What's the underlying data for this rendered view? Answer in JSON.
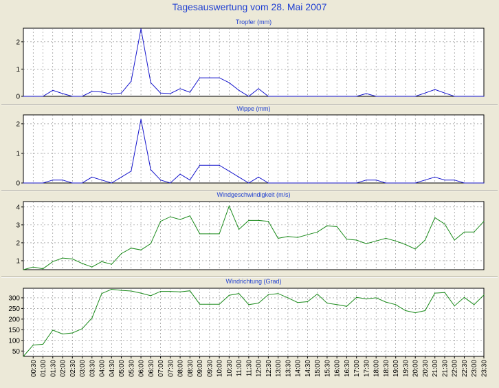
{
  "page_title": "Tagesauswertung vom 28. Mai 2007",
  "colors": {
    "background": "#ece9d8",
    "title": "#1f3fd1",
    "plot": "#ffffff",
    "grid": "#808080",
    "rain": "#1515cc",
    "wind": "#1a8a1a"
  },
  "time_axis": {
    "tick_labels": [
      "00:30",
      "01:00",
      "01:30",
      "02:00",
      "02:30",
      "03:00",
      "03:30",
      "04:00",
      "04:30",
      "05:00",
      "05:30",
      "06:00",
      "06:30",
      "07:00",
      "07:30",
      "08:00",
      "08:30",
      "09:00",
      "09:30",
      "10:00",
      "10:30",
      "11:00",
      "11:30",
      "12:00",
      "12:30",
      "13:00",
      "13:30",
      "14:00",
      "14:30",
      "15:00",
      "15:30",
      "16:00",
      "16:30",
      "17:00",
      "17:30",
      "18:00",
      "18:30",
      "19:00",
      "19:30",
      "20:00",
      "20:30",
      "21:00",
      "21:30",
      "22:00",
      "22:30",
      "23:00",
      "23:30"
    ]
  },
  "chart_data": [
    {
      "type": "line",
      "title": "Tropfer (mm)",
      "ylim": [
        0,
        2.5
      ],
      "yticks": [
        "0",
        "1",
        "2"
      ],
      "grid": true,
      "color": "#1515cc",
      "x": [
        "00:00",
        "00:30",
        "01:00",
        "01:30",
        "02:00",
        "02:30",
        "03:00",
        "03:30",
        "04:00",
        "04:30",
        "05:00",
        "05:30",
        "06:00",
        "06:30",
        "07:00",
        "07:30",
        "08:00",
        "08:30",
        "09:00",
        "09:30",
        "10:00",
        "10:30",
        "11:00",
        "11:30",
        "12:00",
        "12:30",
        "13:00",
        "13:30",
        "14:00",
        "14:30",
        "15:00",
        "15:30",
        "16:00",
        "16:30",
        "17:00",
        "17:30",
        "18:00",
        "18:30",
        "19:00",
        "19:30",
        "20:00",
        "20:30",
        "21:00",
        "21:30",
        "22:00",
        "22:30",
        "23:00",
        "23:30"
      ],
      "values": [
        0,
        0,
        0,
        0.22,
        0.1,
        0,
        0,
        0.18,
        0.16,
        0.08,
        0.12,
        0.55,
        2.48,
        0.5,
        0.12,
        0.1,
        0.28,
        0.15,
        0.68,
        0.68,
        0.68,
        0.5,
        0.22,
        0,
        0.28,
        0,
        0,
        0,
        0,
        0,
        0,
        0,
        0,
        0,
        0,
        0.1,
        0,
        0,
        0,
        0,
        0,
        0.12,
        0.25,
        0.12,
        0,
        0,
        0,
        0
      ]
    },
    {
      "type": "line",
      "title": "Wippe (mm)",
      "ylim": [
        0,
        2.3
      ],
      "yticks": [
        "0",
        "1",
        "2"
      ],
      "grid": true,
      "color": "#1515cc",
      "x": [
        "00:00",
        "00:30",
        "01:00",
        "01:30",
        "02:00",
        "02:30",
        "03:00",
        "03:30",
        "04:00",
        "04:30",
        "05:00",
        "05:30",
        "06:00",
        "06:30",
        "07:00",
        "07:30",
        "08:00",
        "08:30",
        "09:00",
        "09:30",
        "10:00",
        "10:30",
        "11:00",
        "11:30",
        "12:00",
        "12:30",
        "13:00",
        "13:30",
        "14:00",
        "14:30",
        "15:00",
        "15:30",
        "16:00",
        "16:30",
        "17:00",
        "17:30",
        "18:00",
        "18:30",
        "19:00",
        "19:30",
        "20:00",
        "20:30",
        "21:00",
        "21:30",
        "22:00",
        "22:30",
        "23:00",
        "23:30"
      ],
      "values": [
        0,
        0,
        0,
        0.1,
        0.1,
        0,
        0,
        0.2,
        0.1,
        0,
        0.2,
        0.4,
        2.15,
        0.45,
        0.1,
        0,
        0.3,
        0.1,
        0.6,
        0.6,
        0.6,
        0.4,
        0.2,
        0,
        0.2,
        0,
        0,
        0,
        0,
        0,
        0,
        0,
        0,
        0,
        0,
        0.1,
        0.1,
        0,
        0,
        0,
        0,
        0.1,
        0.2,
        0.1,
        0.1,
        0,
        0,
        0
      ]
    },
    {
      "type": "line",
      "title": "Windgeschwindigkeit (m/s)",
      "ylim": [
        0.5,
        4.3
      ],
      "yticks": [
        "1",
        "2",
        "3",
        "4"
      ],
      "grid": true,
      "color": "#1a8a1a",
      "x": [
        "00:00",
        "00:30",
        "01:00",
        "01:30",
        "02:00",
        "02:30",
        "03:00",
        "03:30",
        "04:00",
        "04:30",
        "05:00",
        "05:30",
        "06:00",
        "06:30",
        "07:00",
        "07:30",
        "08:00",
        "08:30",
        "09:00",
        "09:30",
        "10:00",
        "10:30",
        "11:00",
        "11:30",
        "12:00",
        "12:30",
        "13:00",
        "13:30",
        "14:00",
        "14:30",
        "15:00",
        "15:30",
        "16:00",
        "16:30",
        "17:00",
        "17:30",
        "18:00",
        "18:30",
        "19:00",
        "19:30",
        "20:00",
        "20:30",
        "21:00",
        "21:30",
        "22:00",
        "22:30",
        "23:00",
        "23:30"
      ],
      "values": [
        0.5,
        0.65,
        0.55,
        0.95,
        1.15,
        1.1,
        0.85,
        0.65,
        0.95,
        0.8,
        1.4,
        1.7,
        1.6,
        1.95,
        3.2,
        3.45,
        3.3,
        3.5,
        2.5,
        2.5,
        2.5,
        4.05,
        2.75,
        3.25,
        3.25,
        3.2,
        2.25,
        2.35,
        2.3,
        2.45,
        2.6,
        2.95,
        2.9,
        2.2,
        2.15,
        1.95,
        2.1,
        2.25,
        2.1,
        1.9,
        1.65,
        2.15,
        3.4,
        3.05,
        2.15,
        2.6,
        2.6,
        3.2
      ]
    },
    {
      "type": "line",
      "title": "Windrichtung (Grad)",
      "ylim": [
        25,
        345
      ],
      "yticks": [
        "50",
        "100",
        "150",
        "200",
        "250",
        "300"
      ],
      "grid": true,
      "color": "#1a8a1a",
      "x": [
        "00:00",
        "00:30",
        "01:00",
        "01:30",
        "02:00",
        "02:30",
        "03:00",
        "03:30",
        "04:00",
        "04:30",
        "05:00",
        "05:30",
        "06:00",
        "06:30",
        "07:00",
        "07:30",
        "08:00",
        "08:30",
        "09:00",
        "09:30",
        "10:00",
        "10:30",
        "11:00",
        "11:30",
        "12:00",
        "12:30",
        "13:00",
        "13:30",
        "14:00",
        "14:30",
        "15:00",
        "15:30",
        "16:00",
        "16:30",
        "17:00",
        "17:30",
        "18:00",
        "18:30",
        "19:00",
        "19:30",
        "20:00",
        "20:30",
        "21:00",
        "21:30",
        "22:00",
        "22:30",
        "23:00",
        "23:30"
      ],
      "values": [
        25,
        78,
        82,
        148,
        130,
        135,
        155,
        205,
        320,
        340,
        335,
        332,
        322,
        310,
        330,
        330,
        328,
        333,
        270,
        270,
        270,
        312,
        320,
        268,
        275,
        315,
        320,
        300,
        278,
        282,
        318,
        275,
        268,
        260,
        302,
        295,
        300,
        280,
        268,
        240,
        230,
        240,
        322,
        325,
        262,
        302,
        268,
        313
      ]
    }
  ]
}
